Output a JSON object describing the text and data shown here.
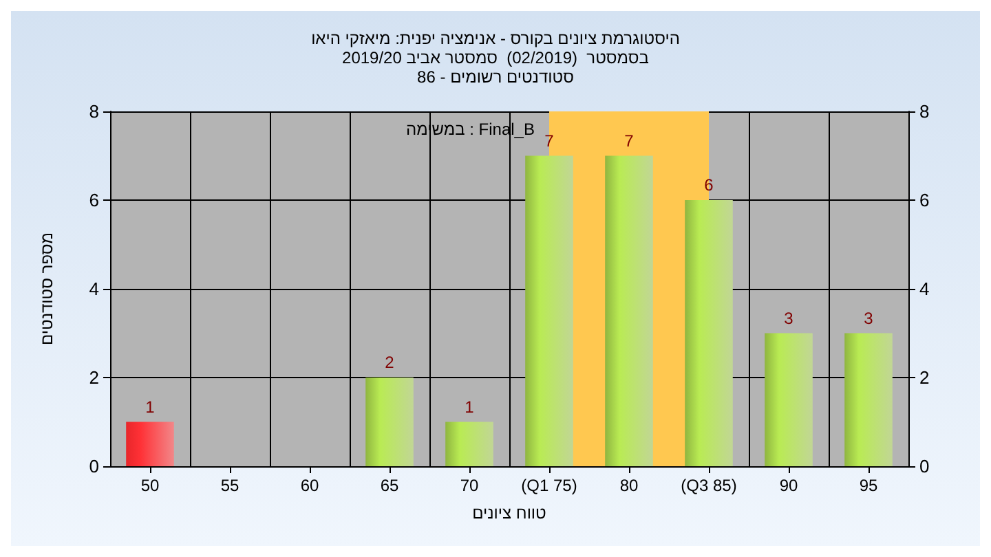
{
  "chart_data": {
    "type": "bar",
    "title": "היסטוגרמת ציונים בקורס - אנימציה יפנית: מיאזקי היאו\nבסמסטר  (02/2019)  סמסטר אביב 2019/20\nסטודנטים רשומים - 86",
    "xlabel": "טווח ציונים",
    "ylabel": "מספר סטודנטים",
    "categories": [
      "50",
      "55",
      "60",
      "65",
      "70",
      "(Q1 75)",
      "80",
      "(Q3 85)",
      "90",
      "95"
    ],
    "values": [
      1,
      0,
      0,
      2,
      1,
      7,
      7,
      6,
      3,
      3
    ],
    "value_labels": [
      "1",
      null,
      null,
      "2",
      "1",
      "7",
      "7",
      "6",
      "3",
      "3"
    ],
    "colors": [
      "#e8262a",
      "#8fb540",
      "#8fb540",
      "#8fb540",
      "#8fb540",
      "#8fb540",
      "#8fb540",
      "#8fb540",
      "#8fb540",
      "#8fb540"
    ],
    "ylim": [
      0,
      8
    ],
    "yticks": [
      0,
      2,
      4,
      6,
      8
    ],
    "y2lim": [
      0,
      8
    ],
    "y2ticks": [
      0,
      2,
      4,
      6,
      8
    ],
    "bands": [
      {
        "axis": "x",
        "from": "(Q1 75)",
        "to": "(Q3 85)",
        "color": "#ffc850"
      }
    ],
    "annotations": [
      "במשימה : Final_B"
    ],
    "grid": true
  }
}
